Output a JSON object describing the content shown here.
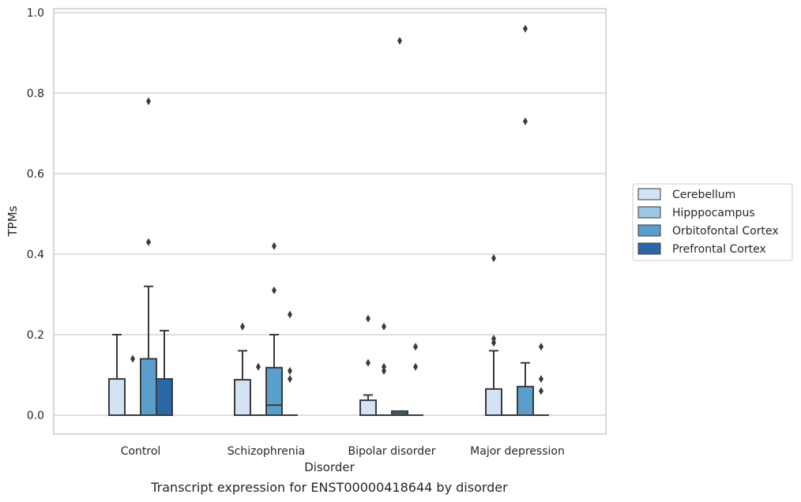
{
  "chart_data": {
    "type": "box",
    "caption": "Transcript expression for ENST00000418644 by disorder",
    "xlabel": "Disorder",
    "ylabel": "TPMs",
    "ylim": [
      -0.045,
      1.01
    ],
    "yticks": [
      "0.0",
      "0.2",
      "0.4",
      "0.6",
      "0.8",
      "1.0"
    ],
    "ytick_values": [
      0,
      0.2,
      0.4,
      0.6,
      0.8,
      1.0
    ],
    "grid": true,
    "legend_position": "right",
    "categories": [
      "Control",
      "Schizophrenia",
      "Bipolar disorder",
      "Major depression"
    ],
    "series": [
      {
        "name": "Cerebellum",
        "color": "#d3e3f3",
        "boxes": [
          {
            "q1": 0,
            "median": 0,
            "q3": 0.09,
            "whisker_low": 0,
            "whisker_high": 0.2,
            "outliers": []
          },
          {
            "q1": 0,
            "median": 0,
            "q3": 0.088,
            "whisker_low": 0,
            "whisker_high": 0.16,
            "outliers": [
              0.22
            ]
          },
          {
            "q1": 0,
            "median": 0,
            "q3": 0.037,
            "whisker_low": 0,
            "whisker_high": 0.05,
            "outliers": [
              0.13,
              0.24
            ]
          },
          {
            "q1": 0,
            "median": 0,
            "q3": 0.065,
            "whisker_low": 0,
            "whisker_high": 0.16,
            "outliers": [
              0.18,
              0.19,
              0.39
            ]
          }
        ]
      },
      {
        "name": "Hipppocampus",
        "color": "#9ac8e0",
        "boxes": [
          {
            "q1": 0,
            "median": 0,
            "q3": 0,
            "whisker_low": 0,
            "whisker_high": 0,
            "outliers": [
              0.14
            ]
          },
          {
            "q1": 0,
            "median": 0,
            "q3": 0,
            "whisker_low": 0,
            "whisker_high": 0,
            "outliers": [
              0.12
            ]
          },
          {
            "q1": 0,
            "median": 0,
            "q3": 0,
            "whisker_low": 0,
            "whisker_high": 0,
            "outliers": [
              0.11,
              0.12,
              0.22
            ]
          },
          {
            "q1": 0,
            "median": 0,
            "q3": 0,
            "whisker_low": 0,
            "whisker_high": 0,
            "outliers": []
          }
        ]
      },
      {
        "name": "Orbitofontal Cortex",
        "color": "#5a9fcb",
        "boxes": [
          {
            "q1": 0,
            "median": 0,
            "q3": 0.14,
            "whisker_low": 0,
            "whisker_high": 0.32,
            "outliers": [
              0.43,
              0.78
            ]
          },
          {
            "q1": 0,
            "median": 0.025,
            "q3": 0.118,
            "whisker_low": 0,
            "whisker_high": 0.2,
            "outliers": [
              0.31,
              0.42
            ]
          },
          {
            "q1": 0,
            "median": 0.005,
            "q3": 0.01,
            "whisker_low": 0,
            "whisker_high": 0.01,
            "outliers": [
              0.93
            ]
          },
          {
            "q1": 0,
            "median": 0,
            "q3": 0.071,
            "whisker_low": 0,
            "whisker_high": 0.13,
            "outliers": [
              0.73,
              0.96
            ]
          }
        ]
      },
      {
        "name": "Prefrontal Cortex",
        "color": "#2967a8",
        "boxes": [
          {
            "q1": 0,
            "median": 0,
            "q3": 0.09,
            "whisker_low": 0,
            "whisker_high": 0.21,
            "outliers": []
          },
          {
            "q1": 0,
            "median": 0,
            "q3": 0,
            "whisker_low": 0,
            "whisker_high": 0,
            "outliers": [
              0.09,
              0.11,
              0.25
            ]
          },
          {
            "q1": 0,
            "median": 0,
            "q3": 0,
            "whisker_low": 0,
            "whisker_high": 0,
            "outliers": [
              0.12,
              0.17
            ]
          },
          {
            "q1": 0,
            "median": 0,
            "q3": 0,
            "whisker_low": 0,
            "whisker_high": 0,
            "outliers": [
              0.06,
              0.09,
              0.17
            ]
          }
        ]
      }
    ]
  },
  "style": {
    "box_edge_color": "#3a3a3a",
    "grid_color": "#cccccc",
    "frame_color": "#cccccc"
  }
}
